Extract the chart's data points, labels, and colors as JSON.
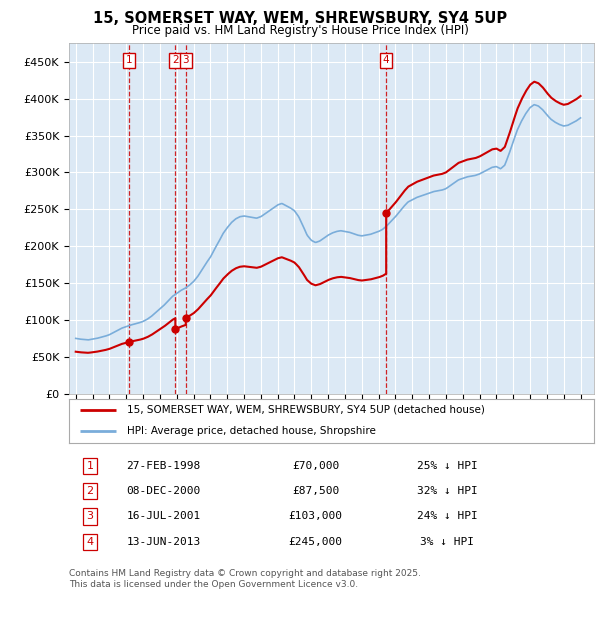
{
  "title": "15, SOMERSET WAY, WEM, SHREWSBURY, SY4 5UP",
  "subtitle": "Price paid vs. HM Land Registry's House Price Index (HPI)",
  "bg_color": "#dce9f5",
  "grid_color": "#ffffff",
  "ylim": [
    0,
    475000
  ],
  "yticks": [
    0,
    50000,
    100000,
    150000,
    200000,
    250000,
    300000,
    350000,
    400000,
    450000
  ],
  "ytick_labels": [
    "£0",
    "£50K",
    "£100K",
    "£150K",
    "£200K",
    "£250K",
    "£300K",
    "£350K",
    "£400K",
    "£450K"
  ],
  "xlim_start": 1994.6,
  "xlim_end": 2025.8,
  "transactions": [
    {
      "num": 1,
      "date": "27-FEB-1998",
      "year": 1998.15,
      "price": 70000,
      "pct": "25%",
      "direction": "↓"
    },
    {
      "num": 2,
      "date": "08-DEC-2000",
      "year": 2000.92,
      "price": 87500,
      "pct": "32%",
      "direction": "↓"
    },
    {
      "num": 3,
      "date": "16-JUL-2001",
      "year": 2001.54,
      "price": 103000,
      "pct": "24%",
      "direction": "↓"
    },
    {
      "num": 4,
      "date": "13-JUN-2013",
      "year": 2013.45,
      "price": 245000,
      "pct": "3%",
      "direction": "↓"
    }
  ],
  "hpi_line_color": "#7aadda",
  "price_line_color": "#cc0000",
  "footnote": "Contains HM Land Registry data © Crown copyright and database right 2025.\nThis data is licensed under the Open Government Licence v3.0.",
  "legend_label_price": "15, SOMERSET WAY, WEM, SHREWSBURY, SY4 5UP (detached house)",
  "legend_label_hpi": "HPI: Average price, detached house, Shropshire",
  "hpi_data": {
    "years": [
      1995.0,
      1995.25,
      1995.5,
      1995.75,
      1996.0,
      1996.25,
      1996.5,
      1996.75,
      1997.0,
      1997.25,
      1997.5,
      1997.75,
      1998.0,
      1998.25,
      1998.5,
      1998.75,
      1999.0,
      1999.25,
      1999.5,
      1999.75,
      2000.0,
      2000.25,
      2000.5,
      2000.75,
      2001.0,
      2001.25,
      2001.5,
      2001.75,
      2002.0,
      2002.25,
      2002.5,
      2002.75,
      2003.0,
      2003.25,
      2003.5,
      2003.75,
      2004.0,
      2004.25,
      2004.5,
      2004.75,
      2005.0,
      2005.25,
      2005.5,
      2005.75,
      2006.0,
      2006.25,
      2006.5,
      2006.75,
      2007.0,
      2007.25,
      2007.5,
      2007.75,
      2008.0,
      2008.25,
      2008.5,
      2008.75,
      2009.0,
      2009.25,
      2009.5,
      2009.75,
      2010.0,
      2010.25,
      2010.5,
      2010.75,
      2011.0,
      2011.25,
      2011.5,
      2011.75,
      2012.0,
      2012.25,
      2012.5,
      2012.75,
      2013.0,
      2013.25,
      2013.5,
      2013.75,
      2014.0,
      2014.25,
      2014.5,
      2014.75,
      2015.0,
      2015.25,
      2015.5,
      2015.75,
      2016.0,
      2016.25,
      2016.5,
      2016.75,
      2017.0,
      2017.25,
      2017.5,
      2017.75,
      2018.0,
      2018.25,
      2018.5,
      2018.75,
      2019.0,
      2019.25,
      2019.5,
      2019.75,
      2020.0,
      2020.25,
      2020.5,
      2020.75,
      2021.0,
      2021.25,
      2021.5,
      2021.75,
      2022.0,
      2022.25,
      2022.5,
      2022.75,
      2023.0,
      2023.25,
      2023.5,
      2023.75,
      2024.0,
      2024.25,
      2024.5,
      2024.75,
      2025.0
    ],
    "values": [
      75000,
      74000,
      73500,
      73000,
      74000,
      75000,
      76500,
      78000,
      80000,
      83000,
      86000,
      89000,
      91000,
      93000,
      94500,
      96000,
      98000,
      101000,
      105000,
      110000,
      115000,
      120000,
      126000,
      132000,
      136000,
      140000,
      143000,
      147000,
      152000,
      159000,
      168000,
      177000,
      185000,
      196000,
      206000,
      217000,
      225000,
      232000,
      237000,
      240000,
      241000,
      240000,
      239000,
      238000,
      240000,
      244000,
      248000,
      252000,
      256000,
      258000,
      255000,
      252000,
      248000,
      240000,
      228000,
      215000,
      208000,
      205000,
      207000,
      211000,
      215000,
      218000,
      220000,
      221000,
      220000,
      219000,
      217000,
      215000,
      214000,
      215000,
      216000,
      218000,
      220000,
      223000,
      228000,
      234000,
      240000,
      247000,
      254000,
      260000,
      263000,
      266000,
      268000,
      270000,
      272000,
      274000,
      275000,
      276000,
      278000,
      282000,
      286000,
      290000,
      292000,
      294000,
      295000,
      296000,
      298000,
      301000,
      304000,
      307000,
      308000,
      305000,
      310000,
      325000,
      342000,
      358000,
      370000,
      380000,
      388000,
      392000,
      390000,
      385000,
      378000,
      372000,
      368000,
      365000,
      363000,
      364000,
      367000,
      370000,
      374000
    ]
  }
}
